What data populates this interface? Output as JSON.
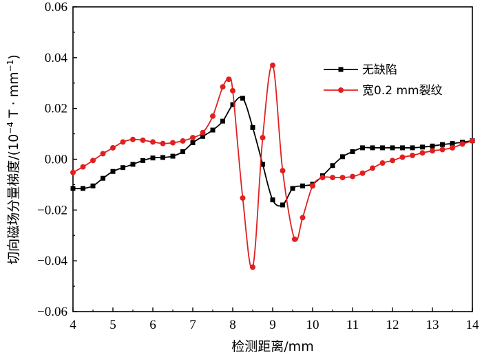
{
  "chart_data": {
    "type": "line",
    "title": "",
    "xlabel": "检测距离/mm",
    "ylabel": "切向磁场分量梯度/(10",
    "ylabel_exp1": "−4",
    "ylabel_mid": " T · mm",
    "ylabel_exp2": "−1",
    "ylabel_end": ")",
    "xlim": [
      4,
      14
    ],
    "ylim": [
      -0.06,
      0.06
    ],
    "xticks": [
      4,
      5,
      6,
      7,
      8,
      9,
      10,
      11,
      12,
      13,
      14
    ],
    "yticks": [
      -0.06,
      -0.04,
      -0.02,
      0.0,
      0.02,
      0.04,
      0.06
    ],
    "xtick_labels": [
      "4",
      "5",
      "6",
      "7",
      "8",
      "9",
      "10",
      "11",
      "12",
      "13",
      "14"
    ],
    "ytick_labels": [
      "−0.06",
      "−0.04",
      "−0.02",
      "0.00",
      "0.02",
      "0.04",
      "0.06"
    ],
    "legend_position": "upper-right",
    "series": [
      {
        "name": "无缺陷",
        "color": "#000000",
        "marker": "square",
        "x": [
          4.0,
          4.25,
          4.5,
          4.75,
          5.0,
          5.25,
          5.5,
          5.75,
          6.0,
          6.25,
          6.5,
          6.75,
          7.0,
          7.25,
          7.5,
          7.75,
          8.0,
          8.25,
          8.5,
          8.75,
          9.0,
          9.25,
          9.5,
          9.75,
          10.0,
          10.25,
          10.5,
          10.75,
          11.0,
          11.25,
          11.5,
          11.75,
          12.0,
          12.25,
          12.5,
          12.75,
          13.0,
          13.25,
          13.5,
          13.75,
          14.0
        ],
        "values": [
          -0.0115,
          -0.0115,
          -0.0105,
          -0.0075,
          -0.0048,
          -0.0033,
          -0.002,
          -0.0005,
          0.0005,
          0.0007,
          0.0012,
          0.003,
          0.0065,
          0.009,
          0.0115,
          0.015,
          0.0215,
          0.024,
          0.0125,
          -0.002,
          -0.016,
          -0.018,
          -0.0115,
          -0.0105,
          -0.0098,
          -0.0065,
          -0.0025,
          0.001,
          0.003,
          0.0045,
          0.0045,
          0.0045,
          0.0045,
          0.0045,
          0.0045,
          0.0048,
          0.0052,
          0.0058,
          0.0062,
          0.0067,
          0.0073
        ]
      },
      {
        "name": "宽0.2 mm裂纹",
        "color": "#e02020",
        "marker": "circle",
        "x": [
          4.0,
          4.25,
          4.5,
          4.75,
          5.0,
          5.25,
          5.5,
          5.75,
          6.0,
          6.25,
          6.5,
          6.75,
          7.0,
          7.25,
          7.5,
          7.75,
          7.9,
          8.0,
          8.25,
          8.5,
          8.75,
          9.0,
          9.25,
          9.55,
          9.75,
          10.0,
          10.25,
          10.5,
          10.75,
          11.0,
          11.25,
          11.5,
          11.75,
          12.0,
          12.25,
          12.5,
          12.75,
          13.0,
          13.25,
          13.5,
          13.75,
          14.0
        ],
        "values": [
          -0.0052,
          -0.003,
          -0.0005,
          0.0022,
          0.0045,
          0.0068,
          0.0078,
          0.0075,
          0.0068,
          0.0062,
          0.0065,
          0.0072,
          0.0085,
          0.0105,
          0.017,
          0.0285,
          0.0315,
          0.027,
          -0.0153,
          -0.0425,
          0.0085,
          0.037,
          -0.0045,
          -0.0315,
          -0.023,
          -0.0105,
          -0.0072,
          -0.0072,
          -0.0072,
          -0.0068,
          -0.0055,
          -0.0035,
          -0.0015,
          -0.0005,
          0.0008,
          0.0015,
          0.0025,
          0.0033,
          0.0038,
          0.0045,
          0.006,
          0.0072
        ]
      }
    ]
  }
}
